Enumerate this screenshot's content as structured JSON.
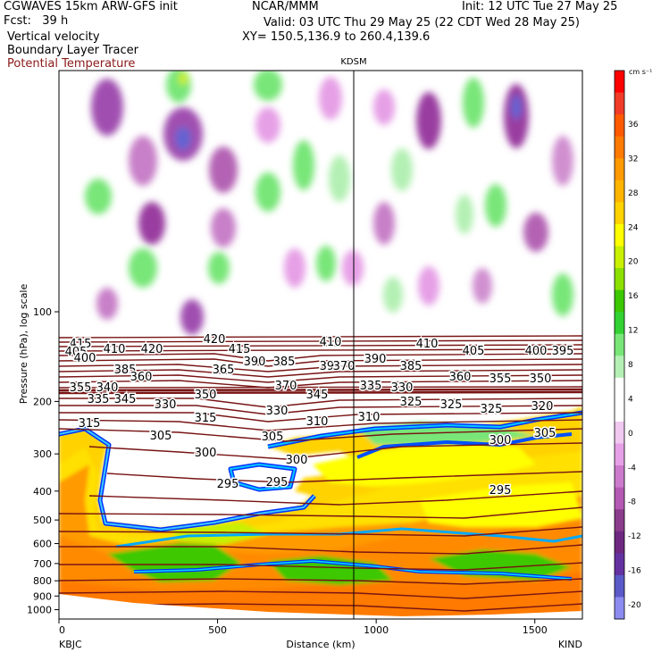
{
  "header": {
    "left1": "CGWAVES 15km ARW-GFS init",
    "left2": "Fcst:   39 h",
    "left3": "Vertical velocity",
    "left4": "Boundary Layer Tracer",
    "left5": "Potential Temperature",
    "center": "NCAR/MMM",
    "right1": "Init: 12 UTC Tue 27 May 25",
    "right2": "Valid: 03 UTC Thu 29 May 25 (22 CDT Wed 28 May 25)",
    "right3": "XY= 150.5,136.9 to 260.4,139.6"
  },
  "chart_data": {
    "type": "heatmap",
    "title": "Vertical velocity",
    "xlabel": "Distance (km)",
    "ylabel": "Pressure (hPa), log scale",
    "x_ticks": [
      "0",
      "500",
      "1000",
      "1500"
    ],
    "x_tick_values": [
      0,
      500,
      1000,
      1500
    ],
    "xlim": [
      0,
      1650
    ],
    "y_ticks": [
      "100",
      "200",
      "300",
      "400",
      "500",
      "600",
      "700",
      "800",
      "900",
      "1000"
    ],
    "y_tick_values": [
      100,
      200,
      300,
      400,
      500,
      600,
      700,
      800,
      900,
      1000
    ],
    "left_station": "KBJC",
    "right_station": "KIND",
    "marker_station": "KDSM",
    "marker_x_km": 945,
    "colorbar": {
      "unit": "cm s⁻¹",
      "labels": [
        "36",
        "32",
        "28",
        "24",
        "20",
        "16",
        "12",
        "8",
        "4",
        "0",
        "-4",
        "-8",
        "-12",
        "-16",
        "-20"
      ],
      "colors": [
        "#ff0000",
        "#f03c28",
        "#ff5a00",
        "#ff7a00",
        "#ff9a00",
        "#ffb400",
        "#ffd200",
        "#ffff00",
        "#c8f000",
        "#8ce000",
        "#3cc800",
        "#32d232",
        "#78e678",
        "#b4f0b4",
        "#ffffff",
        "#ffffff",
        "#f0c8f0",
        "#e6a0e6",
        "#cc7acc",
        "#b45ab4",
        "#8c3c8c",
        "#6e2882",
        "#6432a0",
        "#5a5ac8",
        "#8c8cf0"
      ]
    },
    "theta_labels": [
      "415",
      "410",
      "420",
      "420",
      "415",
      "410",
      "410",
      "405",
      "400",
      "395",
      "405",
      "400",
      "390",
      "385",
      "395",
      "390",
      "385",
      "385",
      "360",
      "365",
      "370",
      "370",
      "360",
      "355",
      "350",
      "355",
      "340",
      "345",
      "350",
      "345",
      "335",
      "330",
      "335",
      "330",
      "330",
      "325",
      "325",
      "325",
      "320",
      "315",
      "315",
      "310",
      "310",
      "305",
      "305",
      "305",
      "300",
      "300",
      "300",
      "295",
      "295",
      "295"
    ]
  }
}
